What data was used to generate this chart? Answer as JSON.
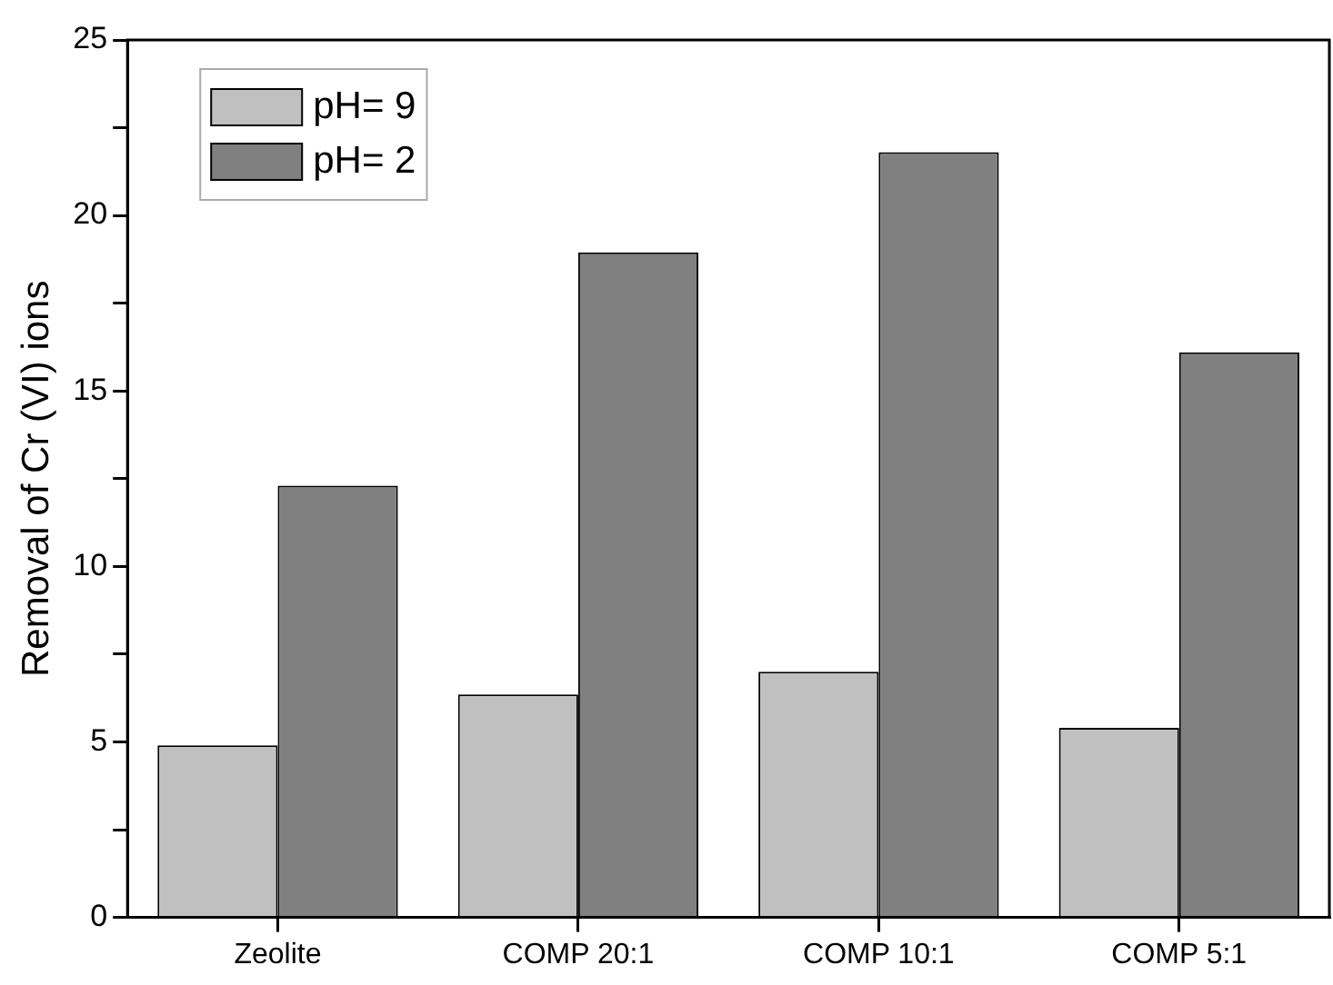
{
  "chart_data": {
    "type": "bar",
    "ylabel": "Removal of Cr (VI) ions",
    "categories": [
      "Zeolite",
      "COMP 20:1",
      "COMP 10:1",
      "COMP 5:1"
    ],
    "series": [
      {
        "name": "pH= 9",
        "color": "#c0c0c0",
        "values": [
          4.9,
          6.35,
          7.0,
          5.4
        ]
      },
      {
        "name": "pH= 2",
        "color": "#808080",
        "values": [
          12.3,
          18.95,
          21.8,
          16.1
        ]
      }
    ],
    "ylim": [
      0,
      25
    ],
    "yticks": [
      0,
      {
        "value": 2.5,
        "label": null
      },
      5,
      {
        "value": 7.5,
        "label": null
      },
      10,
      {
        "value": 12.5,
        "label": null
      },
      15,
      {
        "value": 17.5,
        "label": null
      },
      20,
      {
        "value": 22.5,
        "label": null
      },
      25
    ],
    "grid": false,
    "legend": "top left"
  }
}
